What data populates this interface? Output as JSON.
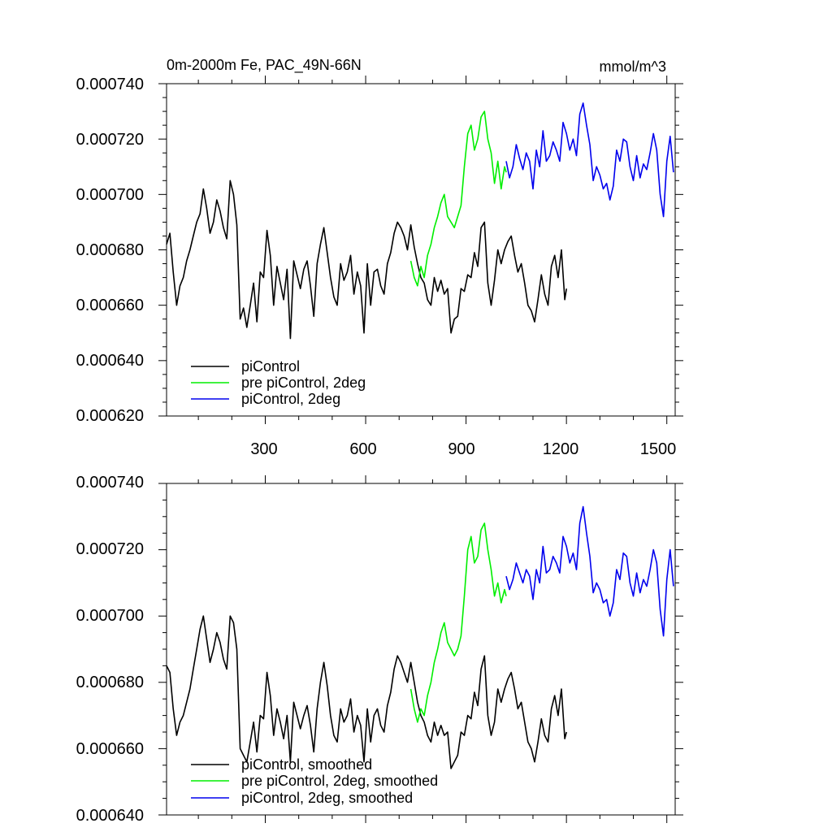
{
  "chart_data": [
    {
      "type": "line",
      "title": "0m-2000m Fe, PAC_49N-66N",
      "units": "mmol/m^3",
      "xlim": [
        5,
        1525
      ],
      "ylim": [
        0.00062,
        0.00074
      ],
      "yticks": [
        "0.000620",
        "0.000640",
        "0.000660",
        "0.000680",
        "0.000700",
        "0.000720",
        "0.000740"
      ],
      "xticks": [
        "300",
        "600",
        "900",
        "1200",
        "1500"
      ],
      "show_xtick_labels": true,
      "legend_position": "bottom-left",
      "series": [
        {
          "name": "piControl",
          "color": "#000000",
          "x": [
            5,
            15,
            25,
            35,
            45,
            55,
            65,
            75,
            85,
            95,
            105,
            115,
            125,
            135,
            145,
            155,
            165,
            175,
            185,
            195,
            205,
            215,
            225,
            235,
            245,
            255,
            265,
            275,
            285,
            295,
            305,
            315,
            325,
            335,
            345,
            355,
            365,
            375,
            385,
            395,
            405,
            415,
            425,
            435,
            445,
            455,
            465,
            475,
            485,
            495,
            505,
            515,
            525,
            535,
            545,
            555,
            565,
            575,
            585,
            595,
            605,
            615,
            625,
            635,
            645,
            655,
            665,
            675,
            685,
            695,
            705,
            715,
            725,
            735,
            745,
            755,
            765,
            775,
            785,
            795,
            805,
            815,
            825,
            835,
            845,
            855,
            865,
            875,
            885,
            895,
            905,
            915,
            925,
            935,
            945,
            955,
            965,
            975,
            985,
            995,
            1005,
            1015,
            1025,
            1035,
            1045,
            1055,
            1065,
            1075,
            1085,
            1095,
            1105,
            1115,
            1125,
            1135,
            1145,
            1155,
            1165,
            1175,
            1185,
            1195,
            1200
          ],
          "y": [
            0.000682,
            0.000686,
            0.000672,
            0.00066,
            0.000667,
            0.00067,
            0.000676,
            0.00068,
            0.000685,
            0.00069,
            0.000693,
            0.000702,
            0.000695,
            0.000686,
            0.00069,
            0.000698,
            0.000694,
            0.000688,
            0.000684,
            0.000705,
            0.0007,
            0.000689,
            0.000655,
            0.000659,
            0.000652,
            0.00066,
            0.000668,
            0.000654,
            0.000672,
            0.00067,
            0.000687,
            0.000678,
            0.00066,
            0.000674,
            0.000668,
            0.000662,
            0.000673,
            0.000648,
            0.000676,
            0.000671,
            0.000666,
            0.000673,
            0.000676,
            0.000667,
            0.000656,
            0.000675,
            0.000682,
            0.000688,
            0.000679,
            0.00067,
            0.000663,
            0.00066,
            0.000675,
            0.000669,
            0.000672,
            0.000678,
            0.000664,
            0.000672,
            0.000667,
            0.00065,
            0.000675,
            0.00066,
            0.000672,
            0.000673,
            0.000667,
            0.000664,
            0.000675,
            0.000679,
            0.000686,
            0.00069,
            0.000688,
            0.000685,
            0.00068,
            0.000689,
            0.000681,
            0.000675,
            0.00067,
            0.000668,
            0.000662,
            0.00066,
            0.00067,
            0.000665,
            0.000669,
            0.000664,
            0.000666,
            0.00065,
            0.000655,
            0.000656,
            0.000666,
            0.000665,
            0.000671,
            0.00067,
            0.000679,
            0.000674,
            0.000688,
            0.00069,
            0.000668,
            0.00066,
            0.000669,
            0.00068,
            0.000675,
            0.00068,
            0.000683,
            0.000685,
            0.000678,
            0.000672,
            0.000675,
            0.000668,
            0.00066,
            0.000658,
            0.000654,
            0.000662,
            0.000671,
            0.000664,
            0.00066,
            0.000674,
            0.000678,
            0.00067,
            0.00068,
            0.000662,
            0.000666
          ]
        },
        {
          "name": "pre piControl, 2deg",
          "color": "#00ee00",
          "x": [
            735,
            745,
            755,
            765,
            775,
            785,
            795,
            805,
            815,
            825,
            835,
            845,
            855,
            865,
            875,
            885,
            895,
            905,
            915,
            925,
            935,
            945,
            955,
            965,
            975,
            985,
            995,
            1005,
            1015,
            1020
          ],
          "y": [
            0.000676,
            0.00067,
            0.000667,
            0.000674,
            0.00067,
            0.000678,
            0.000682,
            0.000688,
            0.000692,
            0.000697,
            0.0007,
            0.000692,
            0.00069,
            0.000688,
            0.000692,
            0.000696,
            0.00071,
            0.000722,
            0.000725,
            0.000716,
            0.00072,
            0.000728,
            0.00073,
            0.00072,
            0.000715,
            0.000704,
            0.000712,
            0.000702,
            0.00071,
            0.000708
          ]
        },
        {
          "name": "piControl, 2deg",
          "color": "#0000ee",
          "x": [
            1020,
            1030,
            1040,
            1050,
            1060,
            1070,
            1080,
            1090,
            1100,
            1110,
            1120,
            1130,
            1140,
            1150,
            1160,
            1170,
            1180,
            1190,
            1200,
            1210,
            1220,
            1230,
            1240,
            1250,
            1260,
            1270,
            1280,
            1290,
            1300,
            1310,
            1320,
            1330,
            1340,
            1350,
            1360,
            1370,
            1380,
            1390,
            1400,
            1410,
            1420,
            1430,
            1440,
            1450,
            1460,
            1470,
            1480,
            1490,
            1500,
            1510,
            1520
          ],
          "y": [
            0.000712,
            0.000706,
            0.00071,
            0.000718,
            0.000713,
            0.000709,
            0.000715,
            0.000712,
            0.000702,
            0.000716,
            0.00071,
            0.000723,
            0.000712,
            0.000714,
            0.000719,
            0.000716,
            0.000712,
            0.000726,
            0.000722,
            0.000716,
            0.00072,
            0.000714,
            0.000729,
            0.000733,
            0.000725,
            0.000718,
            0.000705,
            0.00071,
            0.000707,
            0.000702,
            0.000704,
            0.000698,
            0.000703,
            0.000716,
            0.000712,
            0.00072,
            0.000719,
            0.00071,
            0.000705,
            0.000714,
            0.000706,
            0.000711,
            0.000709,
            0.000715,
            0.000722,
            0.000716,
            0.0007,
            0.000692,
            0.000712,
            0.000721,
            0.000708
          ]
        }
      ]
    },
    {
      "type": "line",
      "xlim": [
        5,
        1525
      ],
      "ylim": [
        0.00064,
        0.00074
      ],
      "yticks": [
        "0.000640",
        "0.000660",
        "0.000680",
        "0.000700",
        "0.000720",
        "0.000740"
      ],
      "xticks": [
        "300",
        "600",
        "900",
        "1200",
        "1500"
      ],
      "show_xtick_labels": false,
      "legend_position": "bottom-left",
      "series": [
        {
          "name": "piControl, smoothed",
          "color": "#000000",
          "x": [
            5,
            15,
            25,
            35,
            45,
            55,
            65,
            75,
            85,
            95,
            105,
            115,
            125,
            135,
            145,
            155,
            165,
            175,
            185,
            195,
            205,
            215,
            225,
            235,
            245,
            255,
            265,
            275,
            285,
            295,
            305,
            315,
            325,
            335,
            345,
            355,
            365,
            375,
            385,
            395,
            405,
            415,
            425,
            435,
            445,
            455,
            465,
            475,
            485,
            495,
            505,
            515,
            525,
            535,
            545,
            555,
            565,
            575,
            585,
            595,
            605,
            615,
            625,
            635,
            645,
            655,
            665,
            675,
            685,
            695,
            705,
            715,
            725,
            735,
            745,
            755,
            765,
            775,
            785,
            795,
            805,
            815,
            825,
            835,
            845,
            855,
            865,
            875,
            885,
            895,
            905,
            915,
            925,
            935,
            945,
            955,
            965,
            975,
            985,
            995,
            1005,
            1015,
            1025,
            1035,
            1045,
            1055,
            1065,
            1075,
            1085,
            1095,
            1105,
            1115,
            1125,
            1135,
            1145,
            1155,
            1165,
            1175,
            1185,
            1195,
            1200
          ],
          "y": [
            0.000685,
            0.000683,
            0.000672,
            0.000664,
            0.000668,
            0.00067,
            0.000674,
            0.000678,
            0.000684,
            0.00069,
            0.000696,
            0.0007,
            0.000693,
            0.000686,
            0.00069,
            0.000695,
            0.000692,
            0.000687,
            0.000684,
            0.0007,
            0.000698,
            0.00069,
            0.00066,
            0.000658,
            0.000656,
            0.000662,
            0.000668,
            0.000659,
            0.00067,
            0.000669,
            0.000683,
            0.000676,
            0.000664,
            0.000672,
            0.000668,
            0.000663,
            0.00067,
            0.000656,
            0.000674,
            0.00067,
            0.000666,
            0.00067,
            0.000673,
            0.000667,
            0.000659,
            0.000672,
            0.00068,
            0.000686,
            0.000679,
            0.00067,
            0.000664,
            0.000662,
            0.000672,
            0.000668,
            0.00067,
            0.000675,
            0.000665,
            0.00067,
            0.000667,
            0.000656,
            0.000672,
            0.000662,
            0.00067,
            0.000672,
            0.000667,
            0.000665,
            0.000673,
            0.000677,
            0.000684,
            0.000688,
            0.000686,
            0.000683,
            0.00068,
            0.000686,
            0.00068,
            0.000674,
            0.00067,
            0.000668,
            0.000664,
            0.000662,
            0.000668,
            0.000664,
            0.000667,
            0.000664,
            0.000665,
            0.000654,
            0.000656,
            0.000658,
            0.000665,
            0.000664,
            0.00067,
            0.000669,
            0.000677,
            0.000673,
            0.000684,
            0.000688,
            0.00067,
            0.000664,
            0.000668,
            0.000678,
            0.000674,
            0.000678,
            0.000681,
            0.000683,
            0.000678,
            0.000672,
            0.000674,
            0.000668,
            0.000662,
            0.00066,
            0.000656,
            0.000662,
            0.000669,
            0.000664,
            0.000662,
            0.000672,
            0.000676,
            0.00067,
            0.000678,
            0.000663,
            0.000665
          ]
        },
        {
          "name": "pre piControl, 2deg, smoothed",
          "color": "#00ee00",
          "x": [
            735,
            745,
            755,
            765,
            775,
            785,
            795,
            805,
            815,
            825,
            835,
            845,
            855,
            865,
            875,
            885,
            895,
            905,
            915,
            925,
            935,
            945,
            955,
            965,
            975,
            985,
            995,
            1005,
            1015,
            1020
          ],
          "y": [
            0.000678,
            0.000672,
            0.000668,
            0.000672,
            0.00067,
            0.000676,
            0.00068,
            0.000686,
            0.00069,
            0.000695,
            0.000698,
            0.000692,
            0.00069,
            0.000688,
            0.00069,
            0.000694,
            0.000706,
            0.00072,
            0.000724,
            0.000716,
            0.000718,
            0.000726,
            0.000728,
            0.00072,
            0.000714,
            0.000706,
            0.00071,
            0.000704,
            0.000708,
            0.000706
          ]
        },
        {
          "name": "piControl, 2deg, smoothed",
          "color": "#0000ee",
          "x": [
            1020,
            1030,
            1040,
            1050,
            1060,
            1070,
            1080,
            1090,
            1100,
            1110,
            1120,
            1130,
            1140,
            1150,
            1160,
            1170,
            1180,
            1190,
            1200,
            1210,
            1220,
            1230,
            1240,
            1250,
            1260,
            1270,
            1280,
            1290,
            1300,
            1310,
            1320,
            1330,
            1340,
            1350,
            1360,
            1370,
            1380,
            1390,
            1400,
            1410,
            1420,
            1430,
            1440,
            1450,
            1460,
            1470,
            1480,
            1490,
            1500,
            1510,
            1520
          ],
          "y": [
            0.000712,
            0.000708,
            0.000711,
            0.000716,
            0.000713,
            0.00071,
            0.000714,
            0.000712,
            0.000705,
            0.000714,
            0.00071,
            0.000721,
            0.000713,
            0.000714,
            0.000718,
            0.000716,
            0.000713,
            0.000724,
            0.000721,
            0.000716,
            0.000719,
            0.000714,
            0.000728,
            0.000733,
            0.000725,
            0.000718,
            0.000707,
            0.00071,
            0.000708,
            0.000704,
            0.000705,
            0.0007,
            0.000704,
            0.000714,
            0.000711,
            0.000719,
            0.000718,
            0.00071,
            0.000706,
            0.000713,
            0.000707,
            0.000711,
            0.000709,
            0.000714,
            0.00072,
            0.000716,
            0.000702,
            0.000694,
            0.000711,
            0.00072,
            0.000709
          ]
        }
      ]
    }
  ]
}
